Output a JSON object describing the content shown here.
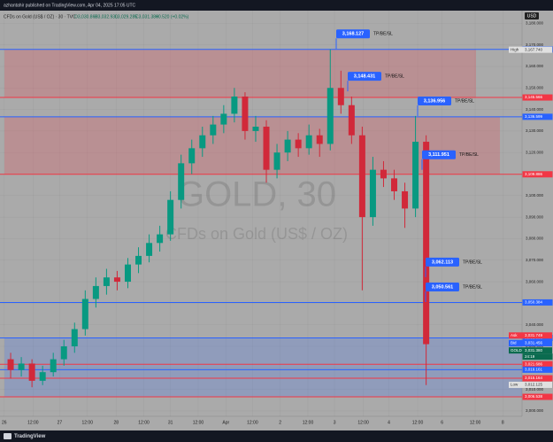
{
  "header": {
    "published": "azhantahir published on TradingView.com, Apr 04, 2025 17:05 UTC"
  },
  "chart_data": {
    "type": "candlestick",
    "title": "CFDs on Gold (US$ / OZ) · 30 · TVC",
    "ohlc_summary": [
      "O3,030.860",
      "H3,032.930",
      "L3,029.285",
      "C3,031.380",
      "+0.520 (+0.02%)"
    ],
    "watermark": [
      "GOLD, 30",
      "CFDs on Gold (US$ / OZ)"
    ],
    "currency": "USD",
    "x": [
      0,
      1,
      2,
      3,
      4,
      5,
      6,
      7,
      8,
      9,
      10,
      11,
      12,
      13,
      14,
      15,
      16,
      17,
      18,
      19,
      20,
      21,
      22,
      23,
      24,
      25,
      26,
      27,
      28,
      29,
      30,
      31,
      32,
      33,
      34,
      35,
      36,
      37,
      38,
      39
    ],
    "open": [
      3024,
      3019,
      3022,
      3014,
      3018,
      3024,
      3030,
      3038,
      3052,
      3058,
      3062,
      3060,
      3068,
      3072,
      3078,
      3082,
      3098,
      3115,
      3122,
      3128,
      3133,
      3138,
      3146,
      3130,
      3132,
      3112,
      3120,
      3126,
      3122,
      3128,
      3124,
      3150,
      3142,
      3128,
      3090,
      3112,
      3108,
      3102,
      3094,
      3125
    ],
    "high": [
      3027,
      3025,
      3024,
      3021,
      3027,
      3033,
      3041,
      3056,
      3062,
      3066,
      3065,
      3071,
      3076,
      3082,
      3086,
      3102,
      3119,
      3126,
      3132,
      3137,
      3142,
      3150,
      3148,
      3137,
      3135,
      3124,
      3130,
      3129,
      3133,
      3131,
      3168,
      3158,
      3146,
      3132,
      3118,
      3116,
      3112,
      3106,
      3137,
      3128
    ],
    "low": [
      3015,
      3016,
      3011,
      3012,
      3016,
      3021,
      3027,
      3035,
      3048,
      3054,
      3056,
      3057,
      3064,
      3069,
      3074,
      3079,
      3094,
      3110,
      3118,
      3124,
      3129,
      3134,
      3126,
      3125,
      3106,
      3108,
      3116,
      3118,
      3119,
      3118,
      3121,
      3138,
      3124,
      3056,
      3086,
      3104,
      3098,
      3085,
      3090,
      3012
    ],
    "close": [
      3019,
      3022,
      3014,
      3018,
      3024,
      3030,
      3038,
      3052,
      3058,
      3062,
      3060,
      3068,
      3072,
      3078,
      3082,
      3098,
      3115,
      3122,
      3128,
      3133,
      3138,
      3146,
      3130,
      3132,
      3112,
      3120,
      3126,
      3122,
      3128,
      3124,
      3150,
      3142,
      3128,
      3090,
      3112,
      3108,
      3102,
      3094,
      3125,
      3031
    ],
    "up_color": "#089981",
    "down_color": "#d1293a",
    "xlim": [
      -1,
      48
    ],
    "xticks": [
      {
        "value": -0.6,
        "label": "26"
      },
      {
        "value": 2.1,
        "label": "12:00"
      },
      {
        "value": 4.6,
        "label": "27"
      },
      {
        "value": 7.2,
        "label": "12:00"
      },
      {
        "value": 9.9,
        "label": "28"
      },
      {
        "value": 12.5,
        "label": "12:00"
      },
      {
        "value": 15,
        "label": "31"
      },
      {
        "value": 17.6,
        "label": "12:00"
      },
      {
        "value": 20.2,
        "label": "Apr"
      },
      {
        "value": 22.7,
        "label": "12:00"
      },
      {
        "value": 25.3,
        "label": "2"
      },
      {
        "value": 27.9,
        "label": "12:00"
      },
      {
        "value": 30.4,
        "label": "3"
      },
      {
        "value": 33.1,
        "label": "12:00"
      },
      {
        "value": 35.5,
        "label": "4"
      },
      {
        "value": 38.2,
        "label": "12:00"
      },
      {
        "value": 40.5,
        "label": "6"
      },
      {
        "value": 43.6,
        "label": "12:00"
      },
      {
        "value": 46.2,
        "label": "8"
      }
    ],
    "ylim": [
      2997.5,
      3185.9
    ],
    "yticks": [
      {
        "value": 3000,
        "label": "3,000.000"
      },
      {
        "value": 3010,
        "label": "3,010.000"
      },
      {
        "value": 3020,
        "label": "3,020.000"
      },
      {
        "value": 3030,
        "label": "3,030.000"
      },
      {
        "value": 3040,
        "label": "3,040.000"
      },
      {
        "value": 3050,
        "label": "3,050.000"
      },
      {
        "value": 3060,
        "label": "3,060.000"
      },
      {
        "value": 3070,
        "label": "3,070.000"
      },
      {
        "value": 3080,
        "label": "3,080.000"
      },
      {
        "value": 3090,
        "label": "3,090.000"
      },
      {
        "value": 3100,
        "label": "3,100.000"
      },
      {
        "value": 3110,
        "label": "3,110.000"
      },
      {
        "value": 3120,
        "label": "3,120.000"
      },
      {
        "value": 3130,
        "label": "3,130.000"
      },
      {
        "value": 3140,
        "label": "3,140.000"
      },
      {
        "value": 3150,
        "label": "3,150.000"
      },
      {
        "value": 3160,
        "label": "3,160.000"
      },
      {
        "value": 3170,
        "label": "3,170.000"
      },
      {
        "value": 3180,
        "label": "3,180.000"
      }
    ],
    "zones": [
      {
        "from": 3167.89,
        "to": 3145.566,
        "color": "rgba(242,54,69,0.22)"
      },
      {
        "from": 3136.599,
        "to": 3109.886,
        "color": "rgba(242,54,69,0.22)"
      },
      {
        "from": 3033.888,
        "to": 3006.538,
        "color": "rgba(41,98,255,0.2)"
      }
    ],
    "levels": [
      {
        "value": 3167.89,
        "label": "3,167.890",
        "color": "#2962ff"
      },
      {
        "value": 3145.566,
        "label": "3,145.566",
        "color": "#f23645"
      },
      {
        "value": 3136.599,
        "label": "3,136.599",
        "color": "#2962ff"
      },
      {
        "value": 3109.886,
        "label": "3,109.886",
        "color": "#f23645"
      },
      {
        "value": 3050.384,
        "label": "3,050.384",
        "color": "#2962ff"
      },
      {
        "value": 3033.888,
        "label": "3,033.888",
        "color": "#2962ff"
      },
      {
        "value": 3021.686,
        "label": "3,021.686",
        "color": "#f23645"
      },
      {
        "value": 3019.161,
        "label": "3,019.161",
        "color": "#2962ff"
      },
      {
        "value": 3015.164,
        "label": "3,015.164",
        "color": "#f23645"
      },
      {
        "value": 3006.538,
        "label": "3,006.538",
        "color": "#f23645"
      }
    ],
    "annotations": [
      {
        "value": 3168.127,
        "label": "3,168.127",
        "text": "TP/BE/SL"
      },
      {
        "value": 3148.431,
        "label": "3,148.431",
        "text": "TP/BE/SL"
      },
      {
        "value": 3136.956,
        "label": "3,136.956",
        "text": "TP/BE/SL"
      },
      {
        "value": 3111.951,
        "label": "3,111.951",
        "text": "TP/BE/SL"
      },
      {
        "value": 3062.113,
        "label": "3,062.113",
        "text": "TP/BE/SL"
      },
      {
        "value": 3050.561,
        "label": "3,050.561",
        "text": "TP/BE/SL"
      }
    ],
    "high_marker": {
      "name": "High",
      "value": 3167.74,
      "label": "3,167.740"
    },
    "low_marker": {
      "name": "Low",
      "value": 3012.125,
      "label": "3,012.125"
    },
    "quotes": [
      {
        "name": "Ask",
        "value": 3031.749,
        "label": "3,031.749",
        "color": "#f23645"
      },
      {
        "name": "Bid",
        "value": 3031.456,
        "label": "3,031.456",
        "color": "#2962ff"
      },
      {
        "name": "GOLD",
        "value": 3031.38,
        "label": "3,031.380",
        "color": "#0b6b4f",
        "countdown": "24:19"
      }
    ],
    "footer": "TradingView"
  }
}
